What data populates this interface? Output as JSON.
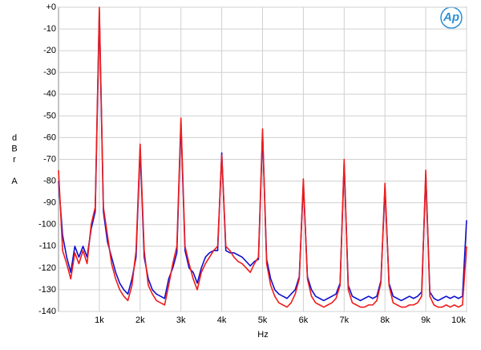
{
  "chart_data": {
    "type": "line",
    "logo": "Ap",
    "xlabel": "Hz",
    "ylabel": "dBr A",
    "xlim": [
      0,
      10000
    ],
    "ylim": [
      -140,
      0
    ],
    "xticks": [
      {
        "value": 1000,
        "label": "1k"
      },
      {
        "value": 2000,
        "label": "2k"
      },
      {
        "value": 3000,
        "label": "3k"
      },
      {
        "value": 4000,
        "label": "4k"
      },
      {
        "value": 5000,
        "label": "5k"
      },
      {
        "value": 6000,
        "label": "6k"
      },
      {
        "value": 7000,
        "label": "7k"
      },
      {
        "value": 8000,
        "label": "8k"
      },
      {
        "value": 9000,
        "label": "9k"
      },
      {
        "value": 10000,
        "label": "10k"
      }
    ],
    "yticks": [
      {
        "value": 0,
        "label": "+0"
      },
      -10,
      -20,
      -30,
      -40,
      -50,
      -60,
      -70,
      -80,
      -90,
      -100,
      -110,
      -120,
      -130,
      -140
    ],
    "grid": true,
    "x": [
      0,
      100,
      200,
      300,
      400,
      500,
      600,
      700,
      800,
      900,
      1000,
      1100,
      1200,
      1300,
      1400,
      1500,
      1600,
      1700,
      1800,
      1900,
      2000,
      2100,
      2200,
      2300,
      2400,
      2500,
      2600,
      2700,
      2800,
      2900,
      3000,
      3100,
      3200,
      3300,
      3400,
      3500,
      3600,
      3700,
      3800,
      3900,
      4000,
      4100,
      4200,
      4300,
      4400,
      4500,
      4600,
      4700,
      4800,
      4900,
      5000,
      5100,
      5200,
      5300,
      5400,
      5500,
      5600,
      5700,
      5800,
      5900,
      6000,
      6100,
      6200,
      6300,
      6400,
      6500,
      6600,
      6700,
      6800,
      6900,
      7000,
      7100,
      7200,
      7300,
      7400,
      7500,
      7600,
      7700,
      7800,
      7900,
      8000,
      8100,
      8200,
      8300,
      8400,
      8500,
      8600,
      8700,
      8800,
      8900,
      9000,
      9100,
      9200,
      9300,
      9400,
      9500,
      9600,
      9700,
      9800,
      9900,
      10000
    ],
    "series": [
      {
        "color": "#1010d0",
        "values": [
          -80,
          -105,
          -115,
          -122,
          -110,
          -115,
          -110,
          -115,
          -102,
          -94,
          -2,
          -94,
          -108,
          -115,
          -122,
          -127,
          -130,
          -132,
          -125,
          -115,
          -65,
          -115,
          -125,
          -130,
          -132,
          -133,
          -134,
          -125,
          -120,
          -113,
          -53,
          -112,
          -120,
          -122,
          -127,
          -120,
          -115,
          -113,
          -112,
          -112,
          -67,
          -112,
          -113,
          -113,
          -114,
          -115,
          -117,
          -119,
          -117,
          -116,
          -58,
          -116,
          -125,
          -130,
          -132,
          -133,
          -134,
          -132,
          -130,
          -124,
          -81,
          -124,
          -130,
          -133,
          -134,
          -135,
          -134,
          -133,
          -132,
          -127,
          -72,
          -128,
          -133,
          -134,
          -135,
          -134,
          -133,
          -134,
          -133,
          -126,
          -83,
          -127,
          -133,
          -134,
          -135,
          -134,
          -133,
          -134,
          -133,
          -131,
          -77,
          -131,
          -134,
          -135,
          -134,
          -133,
          -134,
          -133,
          -134,
          -133,
          -98
        ]
      },
      {
        "color": "#ee1c1c",
        "values": [
          -75,
          -112,
          -118,
          -125,
          -113,
          -118,
          -112,
          -118,
          -100,
          -92,
          0,
          -92,
          -105,
          -118,
          -125,
          -130,
          -133,
          -135,
          -128,
          -112,
          -63,
          -112,
          -128,
          -132,
          -135,
          -136,
          -137,
          -128,
          -118,
          -110,
          -51,
          -110,
          -118,
          -125,
          -130,
          -122,
          -118,
          -115,
          -112,
          -110,
          -68,
          -110,
          -112,
          -115,
          -117,
          -118,
          -120,
          -122,
          -118,
          -115,
          -56,
          -118,
          -128,
          -133,
          -136,
          -137,
          -138,
          -136,
          -132,
          -125,
          -79,
          -125,
          -133,
          -136,
          -137,
          -138,
          -137,
          -136,
          -134,
          -128,
          -70,
          -130,
          -136,
          -137,
          -138,
          -138,
          -137,
          -137,
          -135,
          -127,
          -81,
          -128,
          -136,
          -137,
          -138,
          -138,
          -137,
          -137,
          -136,
          -133,
          -75,
          -133,
          -137,
          -138,
          -138,
          -137,
          -138,
          -137,
          -138,
          -137,
          -110
        ]
      }
    ]
  }
}
